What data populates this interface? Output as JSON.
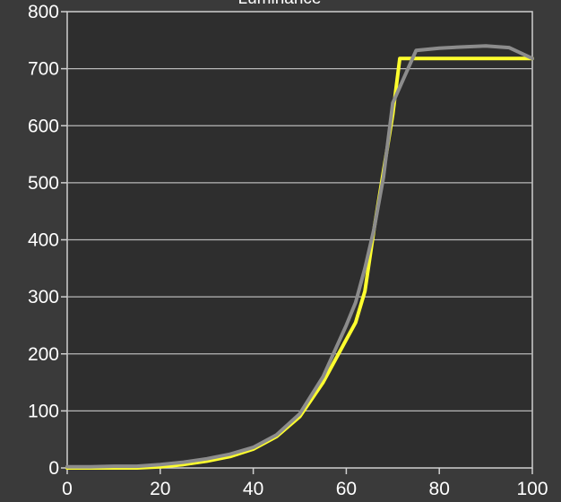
{
  "chart_data": {
    "type": "line",
    "title": "Luminance",
    "xlabel": "",
    "ylabel": "",
    "xlim": [
      0,
      100
    ],
    "ylim": [
      0,
      800
    ],
    "x_ticks": [
      0,
      20,
      40,
      60,
      80,
      100
    ],
    "y_ticks": [
      0,
      100,
      200,
      300,
      400,
      500,
      600,
      700,
      800
    ],
    "grid": true,
    "series": [
      {
        "color": "#ffff2e",
        "points": [
          [
            0,
            0
          ],
          [
            5,
            0
          ],
          [
            10,
            0
          ],
          [
            15,
            0
          ],
          [
            20,
            2
          ],
          [
            25,
            6
          ],
          [
            30,
            12
          ],
          [
            35,
            20
          ],
          [
            40,
            33
          ],
          [
            45,
            55
          ],
          [
            50,
            90
          ],
          [
            55,
            150
          ],
          [
            60,
            225
          ],
          [
            62,
            255
          ],
          [
            64,
            310
          ],
          [
            66,
            420
          ],
          [
            68,
            520
          ],
          [
            70,
            620
          ],
          [
            71.5,
            718
          ],
          [
            75,
            718
          ],
          [
            80,
            718
          ],
          [
            85,
            718
          ],
          [
            90,
            718
          ],
          [
            95,
            718
          ],
          [
            100,
            718
          ]
        ]
      },
      {
        "color": "#8c8c8c",
        "points": [
          [
            0,
            2
          ],
          [
            5,
            2
          ],
          [
            10,
            3
          ],
          [
            15,
            3
          ],
          [
            20,
            6
          ],
          [
            25,
            10
          ],
          [
            30,
            16
          ],
          [
            35,
            24
          ],
          [
            40,
            36
          ],
          [
            45,
            58
          ],
          [
            50,
            95
          ],
          [
            55,
            160
          ],
          [
            60,
            250
          ],
          [
            62,
            290
          ],
          [
            64,
            350
          ],
          [
            66,
            420
          ],
          [
            68,
            510
          ],
          [
            70,
            640
          ],
          [
            75,
            732
          ],
          [
            80,
            736
          ],
          [
            85,
            738
          ],
          [
            90,
            740
          ],
          [
            95,
            737
          ],
          [
            100,
            718
          ]
        ]
      }
    ]
  }
}
